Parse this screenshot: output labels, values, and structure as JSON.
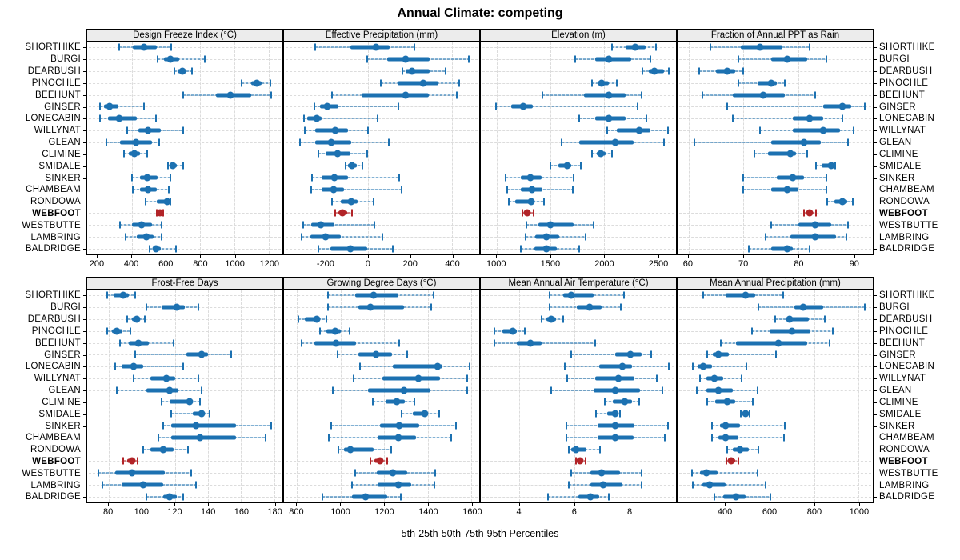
{
  "title": "Annual Climate: competing",
  "xlabel": "5th-25th-50th-75th-95th Percentiles",
  "colors": {
    "series": "#1c71b1",
    "series_whisker": "rgba(28,113,177,0.55)",
    "series_whisker_faint": "rgba(28,113,177,0.15)",
    "highlight": "#b22428",
    "highlight_whisker": "rgba(178,36,40,0.55)",
    "highlight_whisker_faint": "rgba(178,36,40,0.15)",
    "grid": "#dcdcdc",
    "strip_bg": "#ececec",
    "border": "#000000"
  },
  "chart_data": {
    "type": "dotplot",
    "subtype": "percentile-whisker-trellis",
    "percentiles": [
      5,
      25,
      50,
      75,
      95
    ],
    "highlight": "WEBFOOT",
    "stations": [
      "SHORTHIKE",
      "BURGI",
      "DEARBUSH",
      "PINOCHLE",
      "BEEHUNT",
      "GINSER",
      "LONECABIN",
      "WILLYNAT",
      "GLEAN",
      "CLIMINE",
      "SMIDALE",
      "SINKER",
      "CHAMBEAM",
      "RONDOWA",
      "WEBFOOT",
      "WESTBUTTE",
      "LAMBRING",
      "BALDRIDGE"
    ],
    "panels": [
      {
        "title": "Design Freeze Index (°C)",
        "band": "top",
        "xlim": [
          140,
          1280
        ],
        "ticks": [
          200,
          400,
          600,
          800,
          1000,
          1200
        ],
        "tick_labels": [
          "200",
          "400",
          "600",
          "800",
          "1000",
          "1200"
        ],
        "values": [
          [
            325,
            405,
            470,
            545,
            630
          ],
          [
            550,
            590,
            625,
            675,
            825
          ],
          [
            650,
            670,
            695,
            720,
            750
          ],
          [
            1040,
            1100,
            1130,
            1160,
            1210
          ],
          [
            700,
            890,
            975,
            1100,
            1215
          ],
          [
            215,
            240,
            270,
            320,
            470
          ],
          [
            215,
            260,
            325,
            430,
            540
          ],
          [
            375,
            440,
            495,
            570,
            700
          ],
          [
            250,
            330,
            425,
            520,
            560
          ],
          [
            355,
            385,
            415,
            450,
            490
          ],
          [
            610,
            620,
            640,
            662,
            700
          ],
          [
            400,
            450,
            490,
            550,
            625
          ],
          [
            405,
            450,
            495,
            545,
            615
          ],
          [
            480,
            545,
            608,
            618,
            628
          ],
          [
            545,
            555,
            565,
            576,
            586
          ],
          [
            330,
            400,
            460,
            520,
            575
          ],
          [
            365,
            430,
            485,
            530,
            575
          ],
          [
            505,
            525,
            540,
            570,
            660
          ]
        ]
      },
      {
        "title": "Effective Precipitation (mm)",
        "band": "top",
        "xlim": [
          -400,
          530
        ],
        "ticks": [
          -200,
          0,
          200,
          400
        ],
        "tick_labels": [
          "-200",
          "0",
          "200",
          "400"
        ],
        "values": [
          [
            -250,
            -85,
            40,
            105,
            220
          ],
          [
            -5,
            90,
            180,
            295,
            480
          ],
          [
            165,
            180,
            210,
            295,
            370
          ],
          [
            60,
            140,
            265,
            335,
            435
          ],
          [
            -170,
            -30,
            180,
            290,
            425
          ],
          [
            -255,
            -230,
            -195,
            -140,
            145
          ],
          [
            -305,
            -290,
            -245,
            -220,
            45
          ],
          [
            -300,
            -250,
            -155,
            -95,
            0
          ],
          [
            -325,
            -250,
            -175,
            -80,
            100
          ],
          [
            -235,
            -200,
            -145,
            -85,
            -5
          ],
          [
            -105,
            -95,
            -75,
            -55,
            -25
          ],
          [
            -265,
            -220,
            -160,
            -95,
            150
          ],
          [
            -270,
            -220,
            -165,
            -115,
            160
          ],
          [
            -170,
            -130,
            -80,
            -50,
            25
          ],
          [
            -155,
            -140,
            -120,
            -100,
            -75
          ],
          [
            -310,
            -270,
            -225,
            -160,
            30
          ],
          [
            -315,
            -275,
            -200,
            -130,
            70
          ],
          [
            -235,
            -180,
            -85,
            -5,
            120
          ]
        ]
      },
      {
        "title": "Elevation (m)",
        "band": "top",
        "xlim": [
          850,
          2670
        ],
        "ticks": [
          1000,
          1500,
          2000,
          2500
        ],
        "tick_labels": [
          "1000",
          "1500",
          "2000",
          "2500"
        ],
        "values": [
          [
            2075,
            2200,
            2290,
            2385,
            2485
          ],
          [
            1730,
            1915,
            2045,
            2250,
            2435
          ],
          [
            2355,
            2420,
            2470,
            2560,
            2605
          ],
          [
            1890,
            1940,
            1980,
            2040,
            2115
          ],
          [
            1425,
            1815,
            2040,
            2200,
            2350
          ],
          [
            990,
            1135,
            1245,
            1335,
            2310
          ],
          [
            1770,
            1915,
            2045,
            2200,
            2395
          ],
          [
            2025,
            2115,
            2325,
            2435,
            2595
          ],
          [
            1600,
            1765,
            2100,
            2275,
            2555
          ],
          [
            1885,
            1930,
            1970,
            2015,
            2070
          ],
          [
            1500,
            1570,
            1655,
            1695,
            1780
          ],
          [
            1080,
            1220,
            1310,
            1420,
            1715
          ],
          [
            1095,
            1220,
            1325,
            1425,
            1705
          ],
          [
            1110,
            1170,
            1320,
            1350,
            1440
          ],
          [
            1240,
            1255,
            1285,
            1310,
            1340
          ],
          [
            1275,
            1385,
            1500,
            1715,
            1900
          ],
          [
            1265,
            1360,
            1465,
            1580,
            1830
          ],
          [
            1220,
            1350,
            1460,
            1555,
            1770
          ]
        ]
      },
      {
        "title": "Fraction of Annual PPT as Rain",
        "band": "top",
        "xlim": [
          58,
          93.5
        ],
        "ticks": [
          60,
          70,
          80,
          90
        ],
        "tick_labels": [
          "60",
          "70",
          "80",
          "90"
        ],
        "values": [
          [
            64,
            69.5,
            73,
            77,
            82
          ],
          [
            69,
            75,
            78,
            81.5,
            85
          ],
          [
            62,
            65,
            67,
            68.5,
            70
          ],
          [
            69,
            72.5,
            75,
            76,
            77.5
          ],
          [
            62.5,
            68,
            73.5,
            77.5,
            83
          ],
          [
            67,
            84.5,
            88,
            89.5,
            92
          ],
          [
            68,
            79,
            82,
            84.5,
            88
          ],
          [
            73,
            79,
            84.5,
            87.5,
            90
          ],
          [
            61,
            75,
            81,
            84,
            89
          ],
          [
            72,
            74.5,
            78.5,
            79.5,
            81.5
          ],
          [
            83.2,
            84.2,
            85.9,
            86.3,
            86.7
          ],
          [
            70,
            76,
            79,
            81,
            85
          ],
          [
            70,
            75,
            78,
            80,
            85
          ],
          [
            85.2,
            86.5,
            88,
            88.8,
            89.8
          ],
          [
            81,
            81.4,
            82,
            82.6,
            83.1
          ],
          [
            75,
            80,
            83,
            86,
            89
          ],
          [
            74,
            78.5,
            83,
            86.8,
            88.7
          ],
          [
            71,
            75,
            78,
            79,
            82
          ]
        ]
      },
      {
        "title": "Frost-Free Days",
        "band": "bottom",
        "xlim": [
          67,
          185
        ],
        "ticks": [
          80,
          100,
          120,
          140,
          160,
          180
        ],
        "tick_labels": [
          "80",
          "100",
          "120",
          "140",
          "160",
          "180"
        ],
        "values": [
          [
            79,
            83,
            89,
            92,
            96
          ],
          [
            103,
            112,
            121,
            126,
            134
          ],
          [
            91,
            94,
            97,
            99,
            102
          ],
          [
            79,
            82,
            85,
            88.5,
            93
          ],
          [
            87,
            92,
            98,
            104,
            119
          ],
          [
            96,
            127,
            136,
            140,
            154
          ],
          [
            84,
            88,
            95,
            101,
            125
          ],
          [
            95,
            105,
            115,
            120,
            134
          ],
          [
            85,
            103,
            117,
            122,
            136
          ],
          [
            112,
            117,
            129,
            131,
            135
          ],
          [
            118,
            131,
            136,
            137.5,
            141
          ],
          [
            113,
            118,
            133,
            157,
            178
          ],
          [
            110,
            118,
            135,
            157,
            175
          ],
          [
            101,
            105,
            113,
            119,
            128
          ],
          [
            89,
            91,
            94,
            95.5,
            97.5
          ],
          [
            74,
            84,
            94,
            114,
            130
          ],
          [
            76,
            88,
            101,
            113,
            133
          ],
          [
            103,
            113,
            117,
            121,
            125
          ]
        ]
      },
      {
        "title": "Growing Degree Days (°C)",
        "band": "bottom",
        "xlim": [
          740,
          1635
        ],
        "ticks": [
          800,
          1000,
          1200,
          1400,
          1600
        ],
        "tick_labels": [
          "800",
          "1000",
          "1200",
          "1400",
          "1600"
        ],
        "values": [
          [
            940,
            1065,
            1150,
            1265,
            1425
          ],
          [
            940,
            1080,
            1135,
            1290,
            1415
          ],
          [
            805,
            835,
            890,
            905,
            935
          ],
          [
            905,
            935,
            975,
            1000,
            1040
          ],
          [
            820,
            880,
            980,
            1070,
            1270
          ],
          [
            985,
            1080,
            1160,
            1235,
            1305
          ],
          [
            1090,
            1240,
            1445,
            1468,
            1590
          ],
          [
            1060,
            1190,
            1355,
            1455,
            1580
          ],
          [
            965,
            1125,
            1290,
            1410,
            1580
          ],
          [
            1148,
            1205,
            1256,
            1293,
            1337
          ],
          [
            1280,
            1330,
            1385,
            1400,
            1450
          ],
          [
            955,
            1180,
            1270,
            1360,
            1530
          ],
          [
            945,
            1170,
            1265,
            1345,
            1505
          ],
          [
            990,
            1015,
            1045,
            1150,
            1230
          ],
          [
            1135,
            1155,
            1180,
            1195,
            1215
          ],
          [
            1065,
            1165,
            1240,
            1305,
            1435
          ],
          [
            1050,
            1170,
            1265,
            1325,
            1430
          ],
          [
            915,
            1050,
            1115,
            1215,
            1275
          ]
        ]
      },
      {
        "title": "Mean Annual Air Temperature (°C)",
        "band": "bottom",
        "xlim": [
          2.6,
          9.7
        ],
        "ticks": [
          4,
          6,
          8
        ],
        "tick_labels": [
          "4",
          "6",
          "8"
        ],
        "values": [
          [
            5.1,
            5.6,
            5.9,
            6.7,
            7.8
          ],
          [
            5.1,
            6.1,
            6.55,
            7.0,
            7.7
          ],
          [
            4.8,
            5.0,
            5.15,
            5.35,
            5.6
          ],
          [
            3.1,
            3.4,
            3.75,
            3.9,
            4.2
          ],
          [
            3.1,
            3.9,
            4.4,
            4.8,
            6.75
          ],
          [
            5.9,
            7.5,
            8.05,
            8.45,
            8.8
          ],
          [
            5.65,
            6.9,
            7.75,
            8.1,
            9.45
          ],
          [
            5.75,
            6.75,
            7.6,
            8.2,
            9.0
          ],
          [
            5.15,
            6.7,
            7.5,
            8.4,
            9.2
          ],
          [
            7.1,
            7.4,
            7.85,
            8.1,
            8.35
          ],
          [
            6.8,
            7.2,
            7.5,
            7.6,
            7.65
          ],
          [
            5.7,
            6.85,
            7.5,
            8.2,
            9.4
          ],
          [
            5.7,
            6.85,
            7.5,
            8.15,
            9.3
          ],
          [
            5.8,
            5.9,
            6.05,
            6.45,
            6.95
          ],
          [
            6.05,
            6.1,
            6.2,
            6.3,
            6.4
          ],
          [
            5.9,
            6.6,
            7.0,
            7.65,
            8.45
          ],
          [
            5.8,
            6.6,
            7.05,
            7.75,
            8.45
          ],
          [
            5.05,
            6.15,
            6.6,
            6.9,
            7.25
          ]
        ]
      },
      {
        "title": "Mean Annual Precipitation (mm)",
        "band": "bottom",
        "xlim": [
          185,
          1065
        ],
        "ticks": [
          400,
          600,
          800,
          1000
        ],
        "tick_labels": [
          "400",
          "600",
          "800",
          "1000"
        ],
        "values": [
          [
            300,
            400,
            490,
            535,
            660
          ],
          [
            550,
            710,
            750,
            840,
            1030
          ],
          [
            625,
            675,
            690,
            775,
            850
          ],
          [
            520,
            600,
            700,
            785,
            885
          ],
          [
            380,
            450,
            640,
            770,
            870
          ],
          [
            320,
            345,
            370,
            415,
            630
          ],
          [
            255,
            275,
            300,
            340,
            495
          ],
          [
            285,
            315,
            350,
            390,
            475
          ],
          [
            270,
            315,
            370,
            435,
            545
          ],
          [
            320,
            355,
            410,
            445,
            525
          ],
          [
            470,
            480,
            490,
            500,
            510
          ],
          [
            340,
            375,
            400,
            465,
            670
          ],
          [
            340,
            370,
            400,
            460,
            665
          ],
          [
            410,
            435,
            468,
            505,
            550
          ],
          [
            405,
            412,
            425,
            445,
            460
          ],
          [
            250,
            285,
            315,
            365,
            545
          ],
          [
            255,
            295,
            330,
            400,
            580
          ],
          [
            350,
            390,
            450,
            490,
            605
          ]
        ]
      }
    ]
  }
}
